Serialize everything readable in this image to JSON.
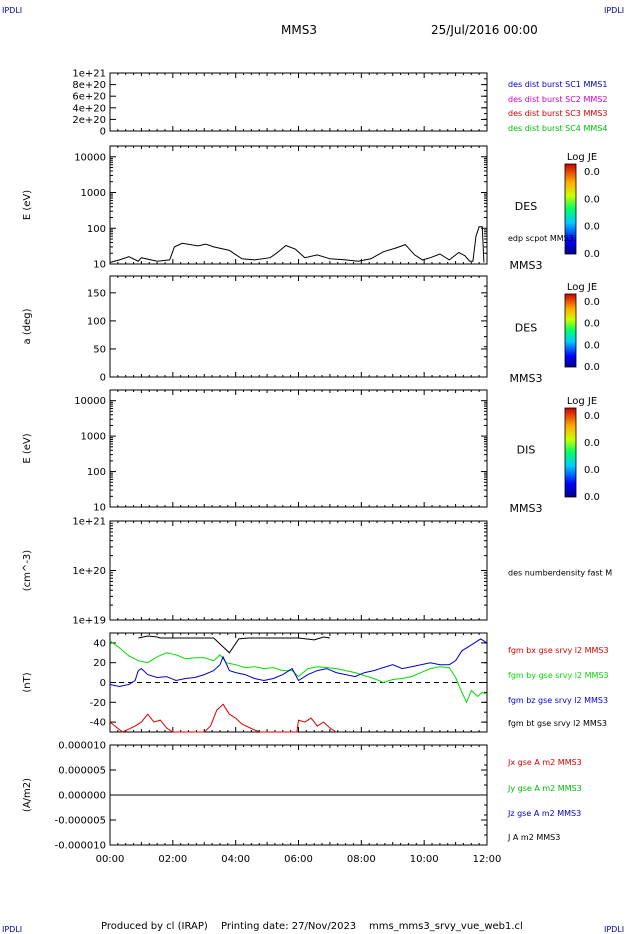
{
  "header": {
    "corner_tl": "IPDLI",
    "corner_tr": "IPDLI",
    "corner_bl": "IPDLI",
    "corner_br": "IPDLI",
    "spacecraft": "MMS3",
    "datetime": "25/Jul/2016 00:00"
  },
  "footer": {
    "produced_by": "Produced by cl (IRAP)",
    "printing_date": "Printing date: 27/Nov/2023",
    "file": "mms_mms3_srvy_vue_web1.cl"
  },
  "colors": {
    "mms1": "#0000cc",
    "mms2": "#cc00cc",
    "mms3": "#cc0000",
    "mms4": "#00bb00",
    "bx": "#dd0000",
    "by": "#00dd00",
    "bz": "#0000cc",
    "bt": "#000000"
  },
  "chart_data": [
    {
      "type": "line",
      "ylabel": "",
      "ylim": [
        0,
        1e+21
      ],
      "yticks": [
        "1e+21",
        "8e+20",
        "6e+20",
        "4e+20",
        "2e+20",
        "0"
      ],
      "legend": [
        {
          "label": "des dist burst SC1 MMS1",
          "color": "#0000cc"
        },
        {
          "label": "des dist burst SC2 MMS2",
          "color": "#cc00cc"
        },
        {
          "label": "des dist burst SC3 MMS3",
          "color": "#cc0000"
        },
        {
          "label": "des dist burst SC4 MMS4",
          "color": "#00bb00"
        }
      ],
      "series": []
    },
    {
      "type": "heatmap",
      "ylabel": "E (eV)",
      "yscale": "log",
      "ylim": [
        10,
        20000
      ],
      "yticks": [
        "10000",
        "1000",
        "100",
        "10"
      ],
      "label": "DES",
      "spacecraft": "MMS3",
      "colorbar": {
        "title": "Log JE",
        "ticks": [
          "0.0",
          "0.0",
          "0.0",
          "0.0"
        ]
      },
      "overlay": {
        "name": "edp scpot MMS3",
        "x": [
          0.0,
          0.3,
          0.6,
          0.9,
          1.0,
          1.5,
          1.9,
          2.05,
          2.3,
          2.8,
          3.05,
          3.3,
          3.8,
          4.2,
          4.6,
          5.1,
          5.3,
          5.6,
          5.9,
          6.2,
          6.6,
          7.0,
          7.5,
          7.9,
          8.3,
          8.7,
          9.1,
          9.4,
          9.7,
          9.95,
          10.2,
          10.5,
          10.8,
          11.1,
          11.3,
          11.45,
          11.55,
          11.65,
          11.75,
          11.85,
          11.9
        ],
        "y": [
          11,
          13,
          16,
          12,
          15,
          12,
          13,
          30,
          38,
          32,
          36,
          30,
          24,
          14,
          13,
          15,
          20,
          33,
          26,
          15,
          18,
          14,
          13,
          12,
          14,
          22,
          28,
          35,
          18,
          13,
          15,
          19,
          13,
          21,
          17,
          12,
          12,
          60,
          110,
          110,
          11
        ]
      }
    },
    {
      "type": "heatmap",
      "ylabel": "a (deg)",
      "ylim": [
        0,
        180
      ],
      "yticks": [
        "150",
        "100",
        "50",
        "0"
      ],
      "label": "DES",
      "spacecraft": "MMS3",
      "colorbar": {
        "title": "Log JE",
        "ticks": [
          "0.0",
          "0.0",
          "0.0",
          "0.0"
        ]
      }
    },
    {
      "type": "heatmap",
      "ylabel": "E (eV)",
      "yscale": "log",
      "ylim": [
        10,
        20000
      ],
      "yticks": [
        "10000",
        "1000",
        "100",
        "10"
      ],
      "label": "DIS",
      "spacecraft": "MMS3",
      "colorbar": {
        "title": "Log JE",
        "ticks": [
          "0.0",
          "0.0",
          "0.0",
          "0.0"
        ]
      }
    },
    {
      "type": "line",
      "ylabel": "(cm^-3)",
      "yscale": "log",
      "ylim": [
        1e+19,
        1e+21
      ],
      "yticks": [
        "1e+21",
        "1e+20",
        "1e+19"
      ],
      "legend": [
        {
          "label": "des numberdensity fast M",
          "color": "#000000"
        }
      ],
      "series": []
    },
    {
      "type": "line",
      "ylabel": "(nT)",
      "ylim": [
        -50,
        50
      ],
      "yticks": [
        "40",
        "20",
        "0",
        "-20",
        "-40"
      ],
      "legend": [
        {
          "label": "fgm bx gse srvy l2 MMS3",
          "color": "#dd0000"
        },
        {
          "label": "fgm by gse srvy l2 MMS3",
          "color": "#00dd00"
        },
        {
          "label": "fgm bz gse srvy l2 MMS3",
          "color": "#0000cc"
        },
        {
          "label": "fgm bt gse srvy l2 MMS3",
          "color": "#000000"
        }
      ],
      "series": [
        {
          "name": "fgm by gse srvy l2 MMS3",
          "x": [
            0.0,
            0.3,
            0.6,
            0.9,
            1.2,
            1.5,
            1.8,
            2.1,
            2.4,
            2.7,
            3.0,
            3.3,
            3.5,
            3.7,
            4.0,
            4.3,
            4.6,
            4.9,
            5.2,
            5.5,
            5.8,
            6.0,
            6.3,
            6.6,
            6.9,
            7.2,
            7.5,
            7.8,
            8.1,
            8.4,
            8.7,
            9.0,
            9.3,
            9.6,
            9.9,
            10.2,
            10.5,
            10.8,
            11.0,
            11.2,
            11.35,
            11.5,
            11.7,
            11.85,
            12.0
          ],
          "y": [
            42,
            35,
            27,
            22,
            20,
            26,
            30,
            28,
            24,
            25,
            25,
            22,
            28,
            20,
            18,
            15,
            16,
            14,
            15,
            12,
            12,
            6,
            14,
            16,
            15,
            14,
            12,
            10,
            7,
            4,
            0,
            3,
            4,
            6,
            10,
            14,
            16,
            15,
            5,
            -10,
            -20,
            -8,
            -14,
            -10,
            -12
          ]
        },
        {
          "name": "fgm bz gse srvy l2 MMS3",
          "x": [
            0.0,
            0.3,
            0.6,
            0.8,
            0.9,
            1.0,
            1.2,
            1.5,
            1.8,
            2.1,
            2.4,
            2.7,
            3.0,
            3.3,
            3.5,
            3.6,
            3.8,
            4.0,
            4.3,
            4.6,
            4.9,
            5.2,
            5.5,
            5.8,
            6.0,
            6.3,
            6.6,
            6.9,
            7.2,
            7.5,
            7.8,
            8.1,
            8.4,
            8.7,
            9.0,
            9.3,
            9.6,
            9.9,
            10.2,
            10.5,
            10.8,
            11.0,
            11.2,
            11.4,
            11.6,
            11.8,
            12.0
          ],
          "y": [
            -2,
            -4,
            -2,
            2,
            12,
            14,
            8,
            5,
            6,
            2,
            4,
            5,
            8,
            12,
            18,
            26,
            12,
            10,
            8,
            4,
            2,
            4,
            8,
            14,
            2,
            8,
            12,
            14,
            10,
            8,
            6,
            10,
            12,
            15,
            18,
            14,
            16,
            18,
            20,
            18,
            18,
            22,
            32,
            36,
            40,
            44,
            40
          ]
        },
        {
          "name": "fgm bx gse srvy l2 MMS3",
          "x": [
            0.0,
            0.4,
            0.8,
            1.0,
            1.2,
            1.4,
            1.6,
            1.8,
            2.0,
            2.5,
            3.0,
            3.2,
            3.4,
            3.6,
            3.8,
            4.0,
            4.2,
            4.6,
            4.8,
            5.0,
            5.5,
            5.95,
            6.0,
            6.2,
            6.4,
            6.6,
            6.8,
            7.0,
            7.2
          ],
          "y": [
            -40,
            -50,
            -44,
            -40,
            -32,
            -40,
            -38,
            -46,
            -50,
            -50,
            -50,
            -44,
            -28,
            -22,
            -32,
            -36,
            -42,
            -48,
            -50,
            -50,
            -50,
            -50,
            -38,
            -40,
            -36,
            -44,
            -40,
            -46,
            -50
          ]
        },
        {
          "name": "fgm bt gse srvy l2 MMS3",
          "x": [
            0.9,
            1.2,
            1.5,
            1.6,
            3.3,
            3.6,
            3.8,
            4.1,
            4.4,
            6.0,
            6.5,
            6.8,
            7.0
          ],
          "y": [
            45,
            47,
            46,
            45,
            45,
            36,
            30,
            44,
            45,
            45,
            43,
            46,
            45
          ]
        }
      ]
    },
    {
      "type": "line",
      "ylabel": "(A/m2)",
      "ylim": [
        -1e-05,
        1e-05
      ],
      "yticks": [
        "0.000010",
        "0.000005",
        "0.000000",
        "-0.000005",
        "-0.000010"
      ],
      "xticks": [
        "00:00",
        "02:00",
        "04:00",
        "06:00",
        "08:00",
        "10:00",
        "12:00"
      ],
      "xlim": [
        0,
        12
      ],
      "legend": [
        {
          "label": "Jx gse A m2 MMS3",
          "color": "#dd0000"
        },
        {
          "label": "Jy gse A m2 MMS3",
          "color": "#00bb00"
        },
        {
          "label": "Jz gse A m2 MMS3",
          "color": "#0000cc"
        },
        {
          "label": "J A m2 MMS3",
          "color": "#000000"
        }
      ],
      "series": [
        {
          "name": "J A m2 MMS3",
          "x": [
            0,
            12
          ],
          "y": [
            0,
            0
          ]
        }
      ]
    }
  ]
}
